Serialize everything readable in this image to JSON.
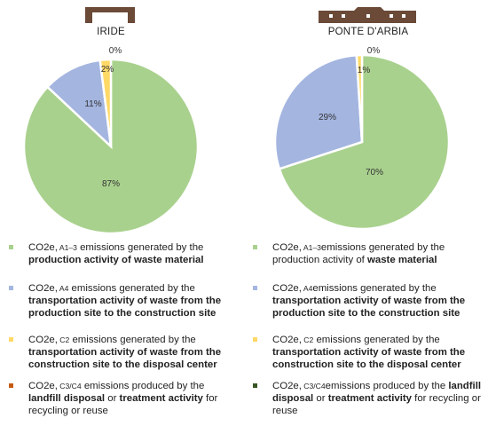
{
  "charts": [
    {
      "id": "iride",
      "title": "IRIDE",
      "slices": [
        {
          "key": "A1-3",
          "value": 87,
          "label": "87%",
          "color": "#a9d18e"
        },
        {
          "key": "A4",
          "value": 11,
          "label": "11%",
          "color": "#a4b5e0"
        },
        {
          "key": "C2",
          "value": 2,
          "label": "2%",
          "color": "#ffd966"
        },
        {
          "key": "C3/C4",
          "value": 0,
          "label": "0%",
          "color": "#c55a11"
        }
      ],
      "legend": [
        {
          "co2": "CO2e,",
          "sub": "A1–3",
          "color": "#a9d18e",
          "parts": [
            {
              "t": " emissions generated by the ",
              "b": false
            },
            {
              "t": "production activity of waste material",
              "b": true
            }
          ]
        },
        {
          "co2": "CO2e,",
          "sub": "A4",
          "color": "#a4b5e0",
          "parts": [
            {
              "t": " emissions generated by the ",
              "b": false
            },
            {
              "t": "transportation activity of waste from the production site to the construction site",
              "b": true
            }
          ]
        },
        {
          "co2": "CO2e,",
          "sub": "C2",
          "color": "#ffd966",
          "parts": [
            {
              "t": " emissions generated by the ",
              "b": false
            },
            {
              "t": "transportation activity of waste from the construction site to the disposal center",
              "b": true
            }
          ]
        },
        {
          "co2": "CO2e,",
          "sub": "C3/C4",
          "color": "#c55a11",
          "parts": [
            {
              "t": " emissions produced by the ",
              "b": false
            },
            {
              "t": "landfill disposal",
              "b": true
            },
            {
              "t": " or ",
              "b": false
            },
            {
              "t": "treatment activity",
              "b": true
            },
            {
              "t": " for recycling or reuse",
              "b": false
            }
          ]
        }
      ]
    },
    {
      "id": "ponte",
      "title": "PONTE D'ARBIA",
      "slices": [
        {
          "key": "A1-3",
          "value": 70,
          "label": "70%",
          "color": "#a9d18e"
        },
        {
          "key": "A4",
          "value": 29,
          "label": "29%",
          "color": "#a4b5e0"
        },
        {
          "key": "C2",
          "value": 1,
          "label": "1%",
          "color": "#ffd966"
        },
        {
          "key": "C3/C4",
          "value": 0,
          "label": "0%",
          "color": "#375623"
        }
      ],
      "legend": [
        {
          "co2": "CO2e,",
          "sub": "A1–3",
          "color": "#a9d18e",
          "parts": [
            {
              "t": "emissions generated by the production activity of ",
              "b": false
            },
            {
              "t": "waste material",
              "b": true
            }
          ]
        },
        {
          "co2": "CO2e,",
          "sub": "A4",
          "color": "#a4b5e0",
          "parts": [
            {
              "t": "emissions generated by the ",
              "b": false
            },
            {
              "t": "transportation activity of waste from the production site to the construction site",
              "b": true
            }
          ]
        },
        {
          "co2": "CO2e,",
          "sub": "C2",
          "color": "#ffd966",
          "parts": [
            {
              "t": " emissions generated by the ",
              "b": false
            },
            {
              "t": "transportation activity of waste from the construction site to the disposal center",
              "b": true
            }
          ]
        },
        {
          "co2": "CO2e,",
          "sub": "C3/C4",
          "color": "#375623",
          "parts": [
            {
              "t": "emissions produced by the ",
              "b": false
            },
            {
              "t": "landfill disposal",
              "b": true
            },
            {
              "t": " or ",
              "b": false
            },
            {
              "t": "treatment activity",
              "b": true
            },
            {
              "t": " for recycling or reuse",
              "b": false
            }
          ]
        }
      ]
    }
  ],
  "chart_data": [
    {
      "type": "pie",
      "title": "IRIDE",
      "categories": [
        "CO2e, A1–3",
        "CO2e, A4",
        "CO2e, C2",
        "CO2e, C3/C4"
      ],
      "values": [
        87,
        11,
        2,
        0
      ],
      "legend_position": "bottom"
    },
    {
      "type": "pie",
      "title": "PONTE D'ARBIA",
      "categories": [
        "CO2e, A1–3",
        "CO2e, A4",
        "CO2e, C2",
        "CO2e, C3/C4"
      ],
      "values": [
        70,
        29,
        1,
        0
      ],
      "legend_position": "bottom"
    }
  ]
}
